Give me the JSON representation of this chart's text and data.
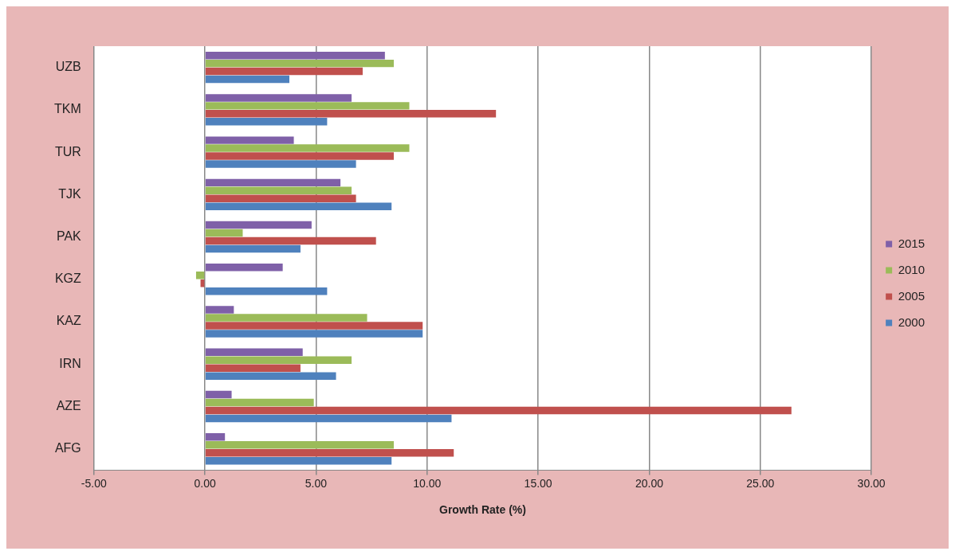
{
  "chart_data": {
    "type": "bar",
    "orientation": "horizontal",
    "xlabel": "Growth Rate (%)",
    "categories": [
      "UZB",
      "TKM",
      "TUR",
      "TJK",
      "PAK",
      "KGZ",
      "KAZ",
      "IRN",
      "AZE",
      "AFG"
    ],
    "series": [
      {
        "name": "2015",
        "color": "#7f60a8",
        "values": [
          8.1,
          6.6,
          4.0,
          6.1,
          4.8,
          3.5,
          1.3,
          4.4,
          1.2,
          0.9
        ]
      },
      {
        "name": "2010",
        "color": "#9bbb59",
        "values": [
          8.5,
          9.2,
          9.2,
          6.6,
          1.7,
          -0.4,
          7.3,
          6.6,
          4.9,
          8.5
        ]
      },
      {
        "name": "2005",
        "color": "#c0504d",
        "values": [
          7.1,
          13.1,
          8.5,
          6.8,
          7.7,
          -0.2,
          9.8,
          4.3,
          26.4,
          11.2
        ]
      },
      {
        "name": "2000",
        "color": "#4f81bd",
        "values": [
          3.8,
          5.5,
          6.8,
          8.4,
          4.3,
          5.5,
          9.8,
          5.9,
          11.1,
          8.4
        ]
      }
    ],
    "xlim": [
      -5,
      30
    ],
    "xticks": [
      {
        "value": -5,
        "label": "-5.00"
      },
      {
        "value": 0,
        "label": "0.00"
      },
      {
        "value": 5,
        "label": "5.00"
      },
      {
        "value": 10,
        "label": "10.00"
      },
      {
        "value": 15,
        "label": "15.00"
      },
      {
        "value": 20,
        "label": "20.00"
      },
      {
        "value": 25,
        "label": "25.00"
      },
      {
        "value": 30,
        "label": "30.00"
      }
    ],
    "grid": "x",
    "legend": "right"
  }
}
